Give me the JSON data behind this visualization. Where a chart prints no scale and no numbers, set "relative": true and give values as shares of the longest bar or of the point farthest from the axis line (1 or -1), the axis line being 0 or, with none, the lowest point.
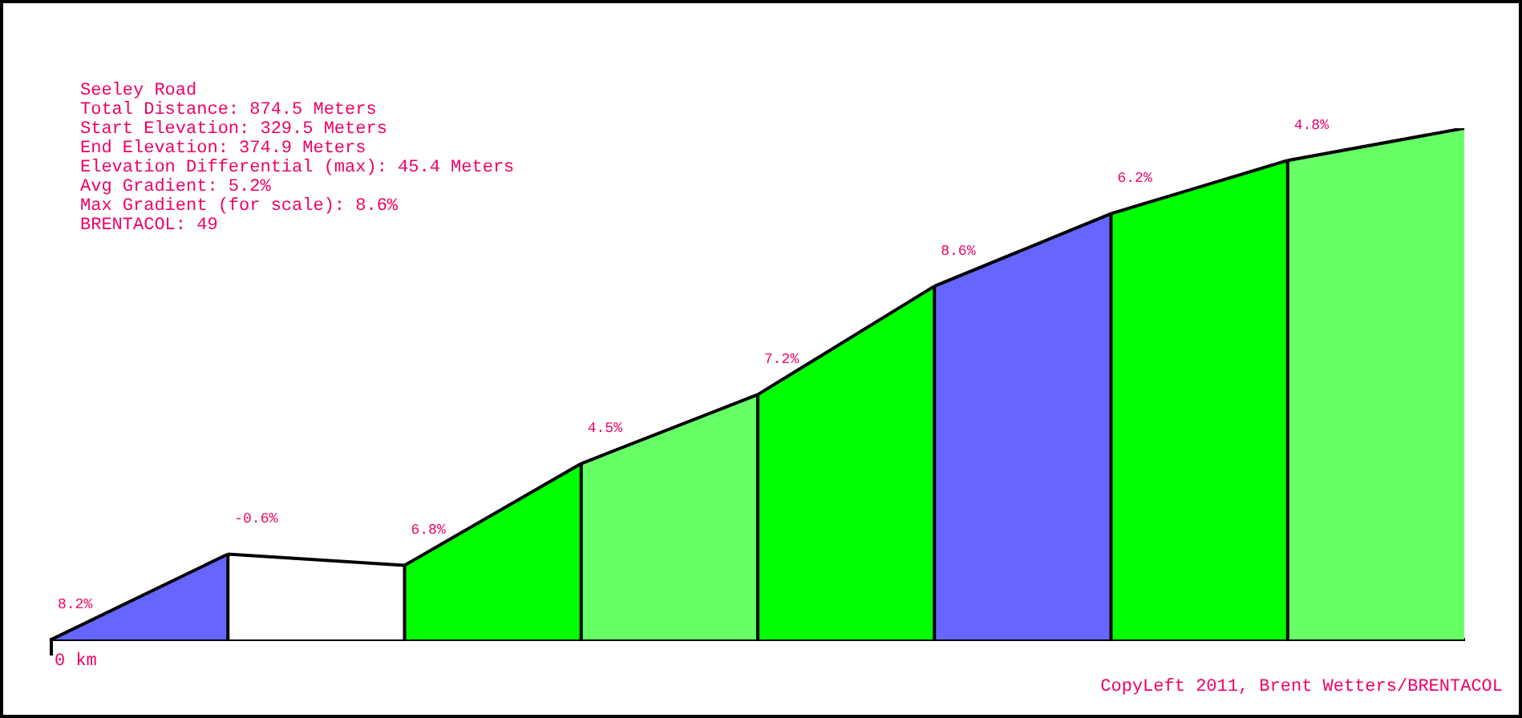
{
  "chart_data": {
    "type": "area",
    "title": "Seeley Road",
    "subtitle": "Total Distance: 874.5 Meters\nStart Elevation: 329.5 Meters\nEnd Elevation: 374.9 Meters\nElevation Differential (max): 45.4 Meters\nAvg Gradient: 5.2%\nMax Gradient (for scale): 8.6%\nBRENTACOL: 49",
    "relative": true,
    "categories": [
      null,
      null,
      null,
      null,
      null,
      null,
      null,
      null,
      null
    ],
    "series": [
      {
        "color": "#6666ff",
        "values": [
          0,
          0.167,
          null,
          null,
          null,
          null,
          null,
          null,
          null
        ]
      },
      {
        "color": "#ffffff",
        "values": [
          null,
          0.167,
          0.145,
          null,
          null,
          null,
          null,
          null,
          null
        ]
      },
      {
        "color": "#00ff00",
        "values": [
          null,
          null,
          0.145,
          0.344,
          null,
          null,
          null,
          null,
          null
        ]
      },
      {
        "color": "#66ff66",
        "values": [
          null,
          null,
          null,
          0.344,
          0.479,
          null,
          null,
          null,
          null
        ]
      },
      {
        "color": "#00ff00",
        "values": [
          null,
          null,
          null,
          null,
          0.479,
          0.691,
          null,
          null,
          null
        ]
      },
      {
        "color": "#6666ff",
        "values": [
          null,
          null,
          null,
          null,
          null,
          0.691,
          0.833,
          null,
          null
        ]
      },
      {
        "color": "#00ff00",
        "values": [
          null,
          null,
          null,
          null,
          null,
          null,
          0.833,
          0.937,
          null
        ]
      },
      {
        "color": "#66ff66",
        "values": [
          null,
          null,
          null,
          null,
          null,
          null,
          null,
          0.937,
          1
        ]
      }
    ],
    "annotations": [
      "8.2%",
      "-0.6%",
      "6.8%",
      "4.5%",
      "7.2%",
      "8.6%",
      "6.2%",
      "4.8%",
      "0 km",
      "CopyLeft 2011, Brent Wetters/BRENTACOL"
    ]
  }
}
